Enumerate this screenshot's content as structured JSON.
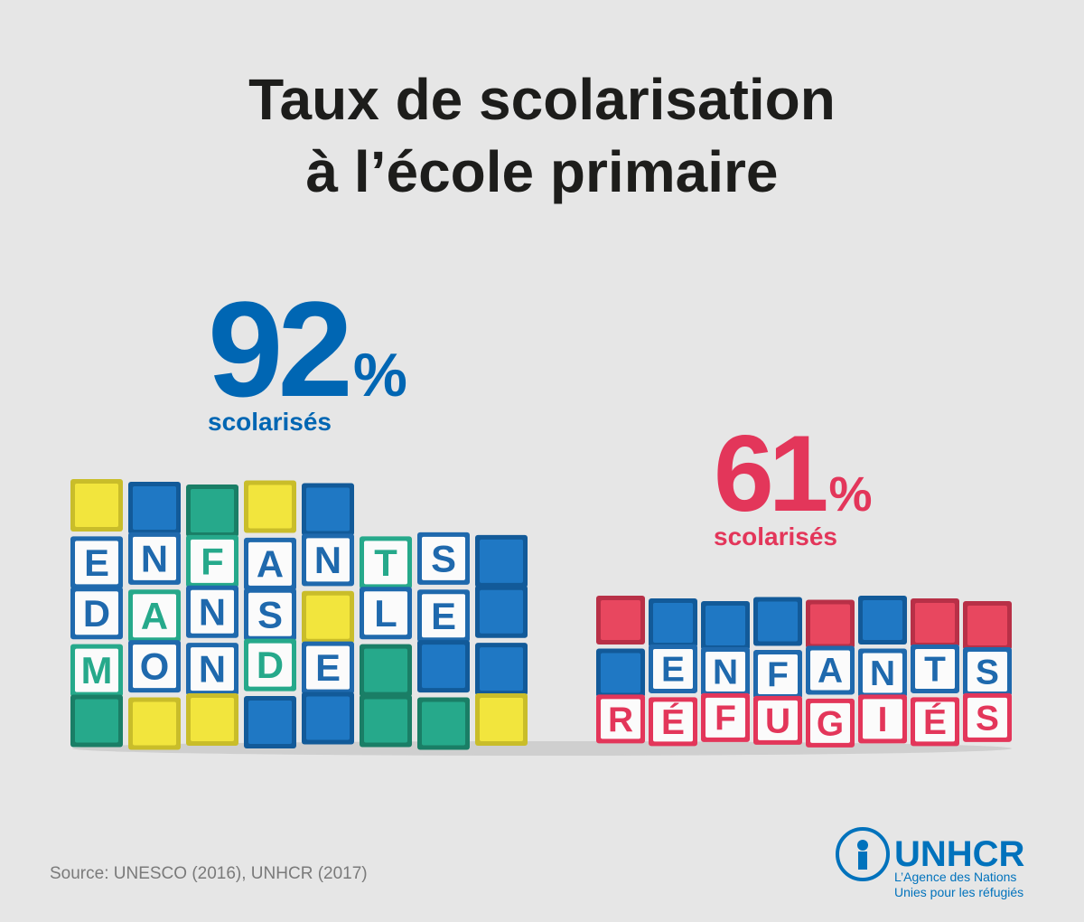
{
  "title": [
    "Taux de scolarisation",
    "à l’école primaire"
  ],
  "groups": [
    {
      "value": 92,
      "unit": "%",
      "label": "scolarisés",
      "rows": [
        [
          [
            "E",
            "N",
            "F",
            "A",
            "N",
            "T",
            "S"
          ]
        ],
        [
          [
            "D",
            "A",
            "N",
            "S"
          ],
          [
            "L",
            "E"
          ]
        ],
        [
          [
            "M",
            "O",
            "N",
            "D",
            "E"
          ]
        ]
      ]
    },
    {
      "value": 61,
      "unit": "%",
      "label": "scolarisés",
      "rows": [
        [
          [
            "E",
            "N",
            "F",
            "A",
            "N",
            "T",
            "S"
          ]
        ],
        [
          [
            "R",
            "É",
            "F",
            "U",
            "G",
            "I",
            "É",
            "S"
          ]
        ]
      ]
    }
  ],
  "source": "Source: UNESCO (2016), UNHCR (2017)",
  "logo": {
    "name": "UNHCR",
    "tagline": [
      "L’Agence des Nations",
      "Unies pour les réfugiés"
    ]
  }
}
